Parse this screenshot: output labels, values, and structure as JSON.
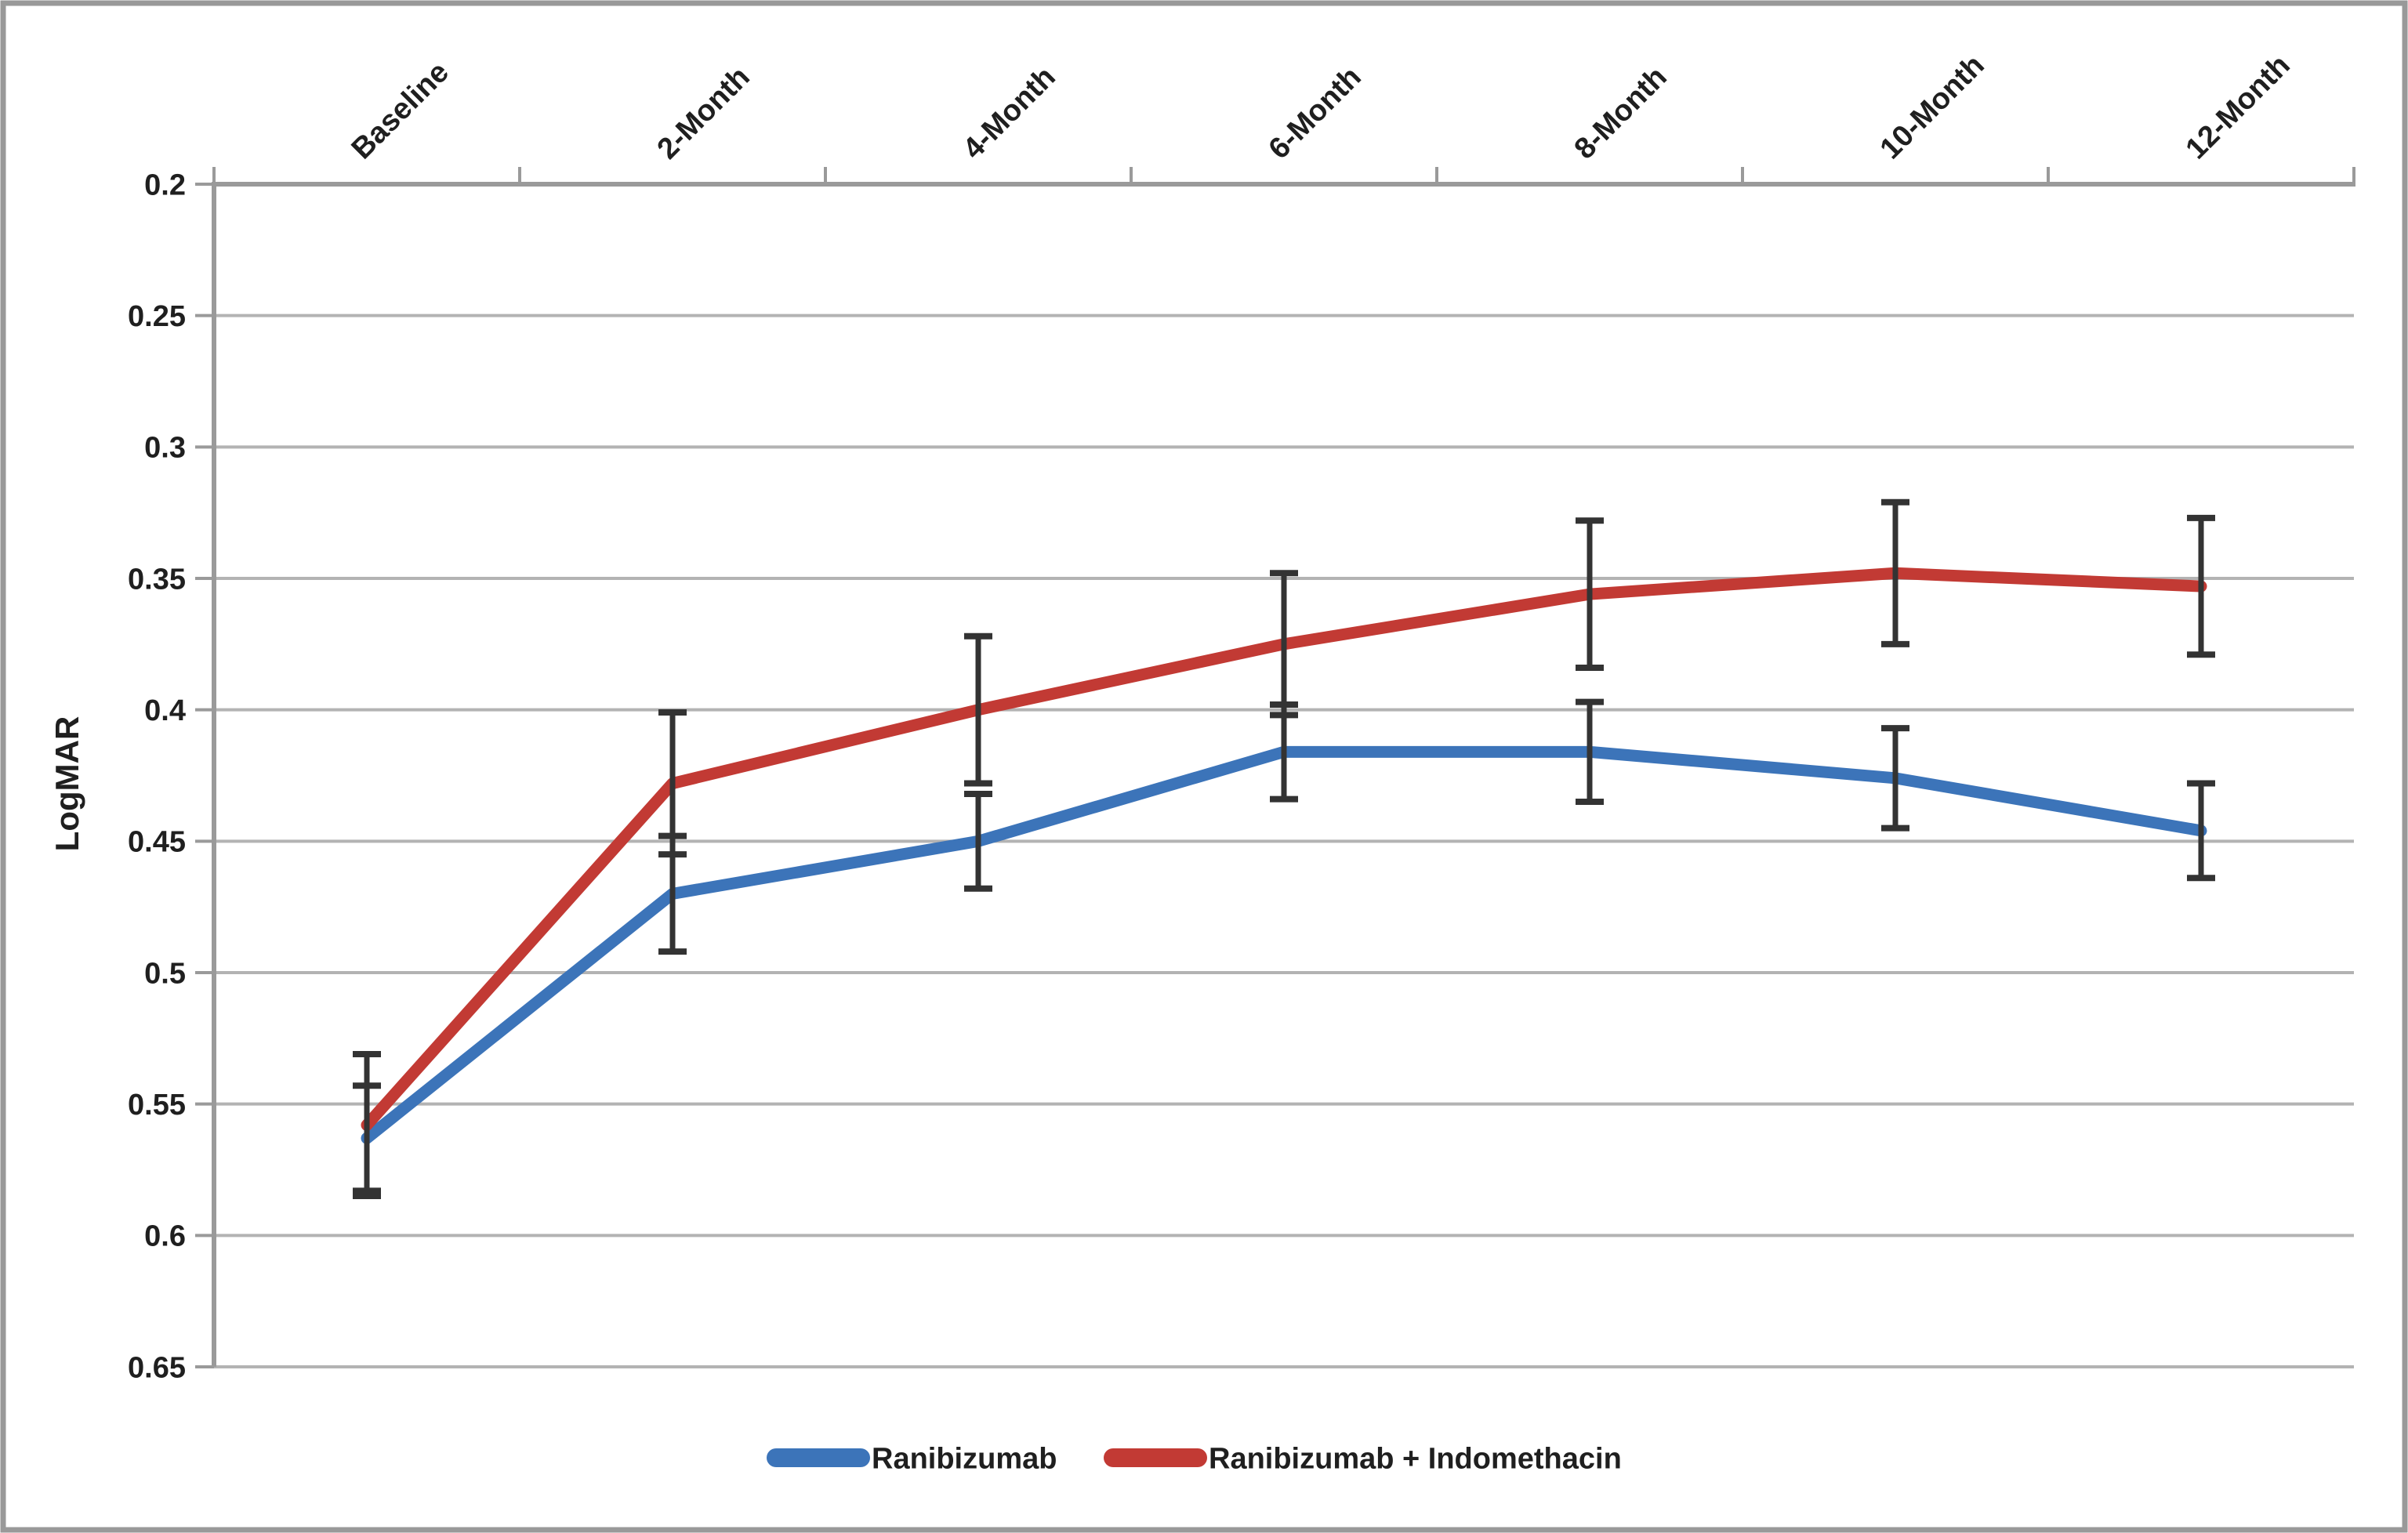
{
  "chart_data": {
    "type": "line",
    "title": "",
    "ylabel": "LogMAR",
    "xlabel": "",
    "categories": [
      "Baseline",
      "2-Month",
      "4-Month",
      "6-Month",
      "8-Month",
      "10-Month",
      "12-Month"
    ],
    "y_axis": {
      "min": 0.2,
      "max": 0.65,
      "step": 0.05,
      "reversed_better_up": true,
      "tick_labels": [
        "0.2",
        "0.25",
        "0.3",
        "0.35",
        "0.4",
        "0.45",
        "0.5",
        "0.55",
        "0.6",
        "0.65"
      ]
    },
    "grid": true,
    "legend_position": "bottom",
    "series": [
      {
        "name": "Ranibizumab",
        "color": "#3c74b9",
        "values": [
          0.563,
          0.47,
          0.45,
          0.416,
          0.416,
          0.426,
          0.446
        ],
        "error": [
          0.02,
          0.022,
          0.018,
          0.018,
          0.019,
          0.019,
          0.018
        ]
      },
      {
        "name": "Ranibizumab + Indomethacin",
        "color": "#c23a34",
        "values": [
          0.558,
          0.428,
          0.4,
          0.375,
          0.356,
          0.348,
          0.353
        ],
        "error": [
          0.027,
          0.027,
          0.028,
          0.027,
          0.028,
          0.027,
          0.026
        ]
      }
    ],
    "colors": {
      "gridline": "#b3b3b3",
      "axis": "#9a9a9a",
      "error_bar": "#333333",
      "text": "#1f1f1f",
      "frame": "#999999"
    }
  }
}
